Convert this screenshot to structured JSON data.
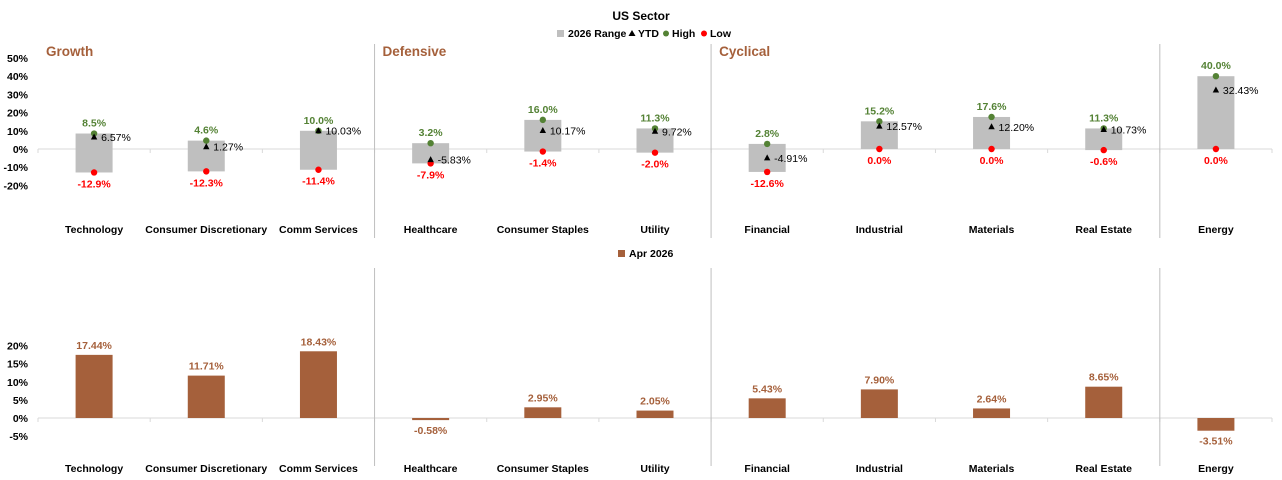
{
  "title": "US Sector",
  "colors": {
    "range": "#bfbfbf",
    "ytd": "#000000",
    "high": "#548235",
    "low": "#ff0000",
    "high_label": "#548235",
    "low_label": "#ff0000",
    "bar": "#a5603b",
    "bar_label": "#a5603b",
    "group_label": "#a5603b",
    "axis": "#d9d9d9",
    "divider": "#bfbfbf"
  },
  "groups": [
    {
      "label": "Growth",
      "start": 0
    },
    {
      "label": "Defensive",
      "start": 3
    },
    {
      "label": "Cyclical",
      "start": 6
    },
    {
      "label": "",
      "start": 10
    }
  ],
  "chart_data": [
    {
      "type": "bar",
      "subtype": "range",
      "legend": [
        "2026 Range",
        "YTD",
        "High",
        "Low"
      ],
      "legend_position": "top-center",
      "categories": [
        "Technology",
        "Consumer Discretionary",
        "Comm Services",
        "Healthcare",
        "Consumer Staples",
        "Utility",
        "Financial",
        "Industrial",
        "Materials",
        "Real Estate",
        "Energy"
      ],
      "series": [
        {
          "name": "High",
          "values": [
            8.5,
            4.6,
            10.0,
            3.2,
            16.0,
            11.3,
            2.8,
            15.2,
            17.6,
            11.3,
            40.0
          ],
          "labels": [
            "8.5%",
            "4.6%",
            "10.0%",
            "3.2%",
            "16.0%",
            "11.3%",
            "2.8%",
            "15.2%",
            "17.6%",
            "11.3%",
            "40.0%"
          ]
        },
        {
          "name": "Low",
          "values": [
            -12.9,
            -12.3,
            -11.4,
            -7.9,
            -1.4,
            -2.0,
            -12.6,
            0.0,
            0.0,
            -0.6,
            0.0
          ],
          "labels": [
            "-12.9%",
            "-12.3%",
            "-11.4%",
            "-7.9%",
            "-1.4%",
            "-2.0%",
            "-12.6%",
            "0.0%",
            "0.0%",
            "-0.6%",
            "0.0%"
          ]
        },
        {
          "name": "YTD",
          "values": [
            6.57,
            1.27,
            10.03,
            -5.83,
            10.17,
            9.72,
            -4.91,
            12.57,
            12.2,
            10.73,
            32.43
          ],
          "labels": [
            "6.57%",
            "1.27%",
            "10.03%",
            "-5.83%",
            "10.17%",
            "9.72%",
            "-4.91%",
            "12.57%",
            "12.20%",
            "10.73%",
            "32.43%"
          ]
        }
      ],
      "yticks": [
        -20,
        -10,
        0,
        10,
        20,
        30,
        40,
        50
      ],
      "ytick_labels": [
        "-20%",
        "-10%",
        "0%",
        "10%",
        "20%",
        "30%",
        "40%",
        "50%"
      ],
      "ylim": [
        -20,
        50
      ],
      "grid": false
    },
    {
      "type": "bar",
      "legend": [
        "Apr 2026"
      ],
      "legend_position": "top-center",
      "categories": [
        "Technology",
        "Consumer Discretionary",
        "Comm Services",
        "Healthcare",
        "Consumer Staples",
        "Utility",
        "Financial",
        "Industrial",
        "Materials",
        "Real Estate",
        "Energy"
      ],
      "series": [
        {
          "name": "Apr 2026",
          "values": [
            17.44,
            11.71,
            18.43,
            -0.58,
            2.95,
            2.05,
            5.43,
            7.9,
            2.64,
            8.65,
            -3.51
          ],
          "labels": [
            "17.44%",
            "11.71%",
            "18.43%",
            "-0.58%",
            "2.95%",
            "2.05%",
            "5.43%",
            "7.90%",
            "2.64%",
            "8.65%",
            "-3.51%"
          ]
        }
      ],
      "yticks": [
        -5,
        0,
        5,
        10,
        15,
        20
      ],
      "ytick_labels": [
        "-5%",
        "0%",
        "5%",
        "10%",
        "15%",
        "20%"
      ],
      "ylim": [
        -5,
        20
      ],
      "grid": false
    }
  ]
}
